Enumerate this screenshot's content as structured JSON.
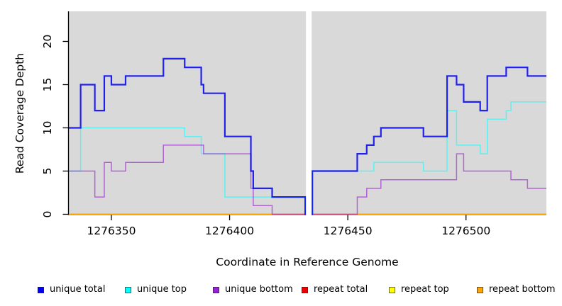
{
  "figure": {
    "x_axis_title": "Coordinate in Reference Genome",
    "y_axis_title": "Read Coverage Depth"
  },
  "legend": {
    "items": [
      {
        "label": "unique total",
        "color": "#0000EE"
      },
      {
        "label": "unique top",
        "color": "#00FFFF"
      },
      {
        "label": "unique bottom",
        "color": "#9A1FD8"
      },
      {
        "label": "repeat total",
        "color": "#EE0000"
      },
      {
        "label": "repeat top",
        "color": "#FFFF00"
      },
      {
        "label": "repeat bottom",
        "color": "#FFA500"
      }
    ]
  },
  "chart_data": {
    "type": "line",
    "step": true,
    "title": "",
    "xlabel": "Coordinate in Reference Genome",
    "ylabel": "Read Coverage Depth",
    "x_range": [
      1276332,
      1276534
    ],
    "y_range": [
      0,
      23.4
    ],
    "x_ticks": [
      1276350,
      1276400,
      1276450,
      1276500
    ],
    "y_ticks": [
      0,
      5,
      10,
      15,
      20
    ],
    "grid": false,
    "plot_background": "#D9D9D9",
    "axis_color": "#000000",
    "legend_position": "bottom",
    "no_data_gap": {
      "from": 1276432.3,
      "to": 1276434.7
    },
    "series": [
      {
        "name": "repeat total",
        "line_color": "#DF0000",
        "line_width": 1.5,
        "points": [
          [
            1276332,
            0
          ],
          [
            1276534,
            0
          ]
        ]
      },
      {
        "name": "repeat top",
        "line_color": "#FFFF00",
        "line_width": 1.5,
        "points": [
          [
            1276332,
            0
          ],
          [
            1276534,
            0
          ]
        ]
      },
      {
        "name": "repeat bottom",
        "line_color": "#FFA500",
        "line_width": 1.6,
        "points": [
          [
            1276332,
            0
          ],
          [
            1276534,
            0
          ]
        ]
      },
      {
        "name": "unique top",
        "line_color": "rgba(0,255,255,0.55)",
        "line_width": 1.5,
        "points": [
          [
            1276332,
            5
          ],
          [
            1276337,
            10
          ],
          [
            1276381,
            9
          ],
          [
            1276388,
            7
          ],
          [
            1276398,
            2
          ],
          [
            1276432,
            0
          ],
          [
            1276435,
            5
          ],
          [
            1276461,
            6
          ],
          [
            1276482,
            5
          ],
          [
            1276492,
            12
          ],
          [
            1276496,
            8
          ],
          [
            1276506,
            7
          ],
          [
            1276509,
            11
          ],
          [
            1276517,
            12
          ],
          [
            1276519,
            13
          ],
          [
            1276534,
            13
          ]
        ]
      },
      {
        "name": "unique bottom",
        "line_color": "rgba(148,0,211,0.55)",
        "line_width": 1.5,
        "points": [
          [
            1276332,
            5
          ],
          [
            1276343,
            2
          ],
          [
            1276347,
            6
          ],
          [
            1276350,
            5
          ],
          [
            1276356,
            6
          ],
          [
            1276372,
            8
          ],
          [
            1276389,
            7
          ],
          [
            1276409,
            3
          ],
          [
            1276410,
            1
          ],
          [
            1276418,
            0
          ],
          [
            1276454,
            2
          ],
          [
            1276458,
            3
          ],
          [
            1276464,
            4
          ],
          [
            1276496,
            7
          ],
          [
            1276499,
            5
          ],
          [
            1276519,
            4
          ],
          [
            1276526,
            3
          ],
          [
            1276534,
            3
          ]
        ]
      },
      {
        "name": "unique total",
        "line_color": "rgba(0,0,238,0.85)",
        "line_width": 2.2,
        "points": [
          [
            1276332,
            10
          ],
          [
            1276337,
            15
          ],
          [
            1276343,
            12
          ],
          [
            1276347,
            16
          ],
          [
            1276350,
            15
          ],
          [
            1276356,
            16
          ],
          [
            1276372,
            18
          ],
          [
            1276381,
            17
          ],
          [
            1276388,
            15
          ],
          [
            1276389,
            14
          ],
          [
            1276398,
            9
          ],
          [
            1276409,
            5
          ],
          [
            1276410,
            3
          ],
          [
            1276418,
            2
          ],
          [
            1276432,
            0
          ],
          [
            1276435,
            5
          ],
          [
            1276454,
            7
          ],
          [
            1276458,
            8
          ],
          [
            1276461,
            9
          ],
          [
            1276464,
            10
          ],
          [
            1276482,
            9
          ],
          [
            1276492,
            16
          ],
          [
            1276496,
            15
          ],
          [
            1276499,
            13
          ],
          [
            1276506,
            12
          ],
          [
            1276509,
            16
          ],
          [
            1276517,
            17
          ],
          [
            1276526,
            16
          ],
          [
            1276534,
            16
          ]
        ]
      }
    ]
  }
}
